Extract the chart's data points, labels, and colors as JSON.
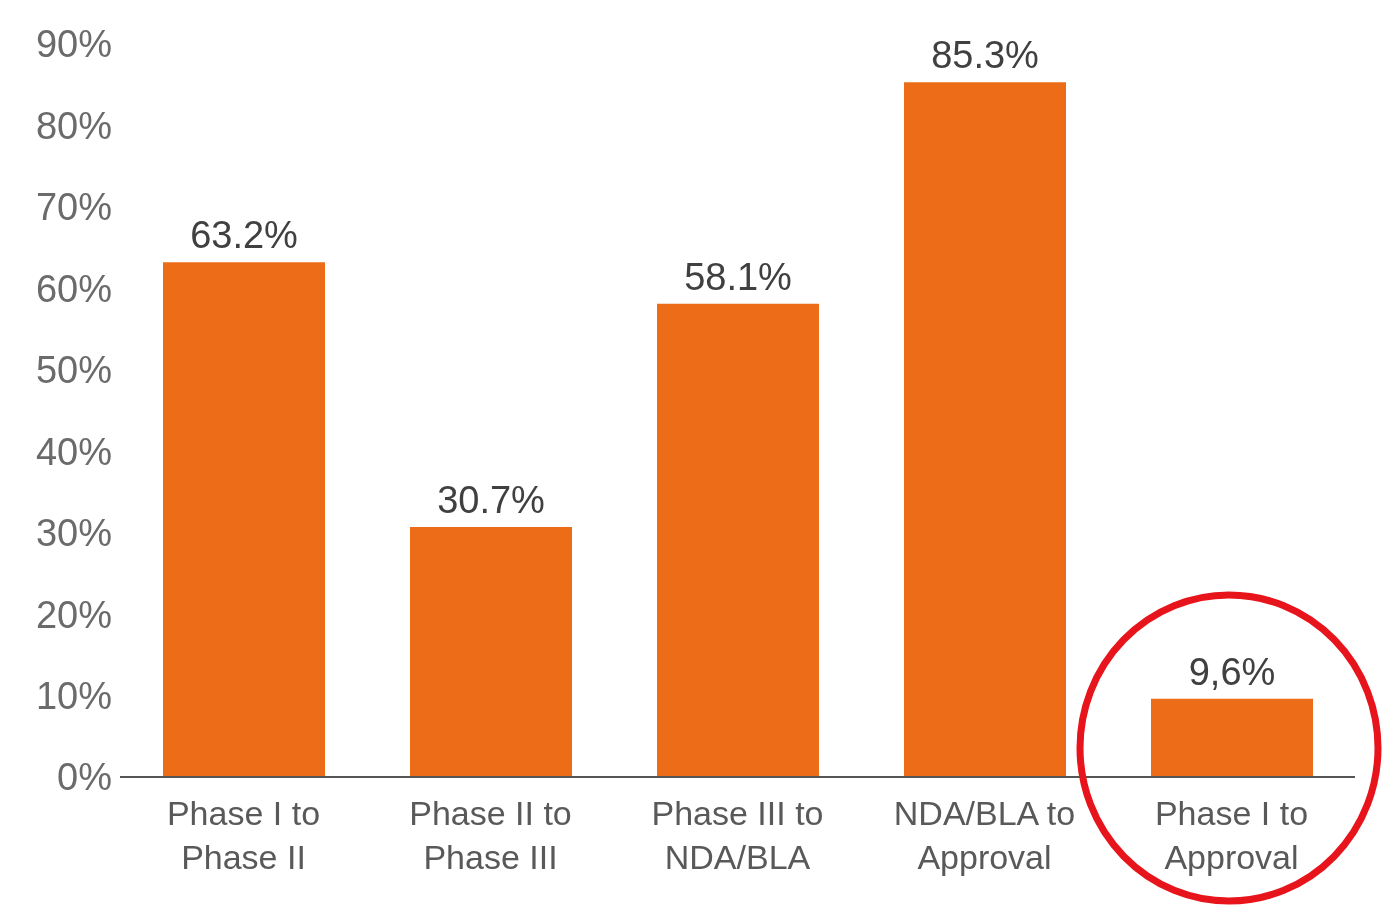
{
  "chart_data": {
    "type": "bar",
    "categories": [
      "Phase I to Phase II",
      "Phase II to Phase III",
      "Phase III to NDA/BLA",
      "NDA/BLA to Approval",
      "Phase I to Approval"
    ],
    "values": [
      63.2,
      30.7,
      58.1,
      85.3,
      9.6
    ],
    "value_labels": [
      "63.2%",
      "30.7%",
      "58.1%",
      "85.3%",
      "9,6%"
    ],
    "color": "#ec6c17",
    "ylim": [
      0,
      90
    ],
    "yticks": [
      {
        "value": 0,
        "label": "0%"
      },
      {
        "value": 10,
        "label": "10%"
      },
      {
        "value": 20,
        "label": "20%"
      },
      {
        "value": 30,
        "label": "30%"
      },
      {
        "value": 40,
        "label": "40%"
      },
      {
        "value": 50,
        "label": "50%"
      },
      {
        "value": 60,
        "label": "60%"
      },
      {
        "value": 70,
        "label": "70%"
      },
      {
        "value": 80,
        "label": "80%"
      },
      {
        "value": 90,
        "label": "90%"
      }
    ],
    "grid": false
  }
}
